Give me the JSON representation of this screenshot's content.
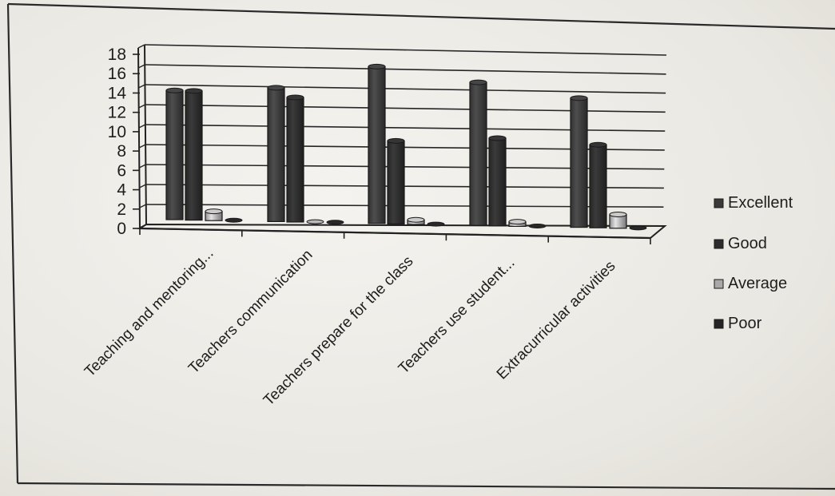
{
  "chart_data": {
    "type": "bar",
    "categories": [
      "Teaching and mentoring...",
      "Teachers communication",
      "Teachers prepare for the class",
      "Teachers use student...",
      "Extracurricular activities"
    ],
    "series": [
      {
        "name": "Excellent",
        "values": [
          14,
          14.5,
          17,
          15.5,
          14
        ]
      },
      {
        "name": "Good",
        "values": [
          14,
          13.5,
          9,
          9.5,
          9
        ]
      },
      {
        "name": "Average",
        "values": [
          1,
          0,
          0.5,
          0.5,
          1.5
        ]
      },
      {
        "name": "Poor",
        "values": [
          0,
          0,
          0,
          0,
          0
        ]
      }
    ],
    "yticks": [
      "0",
      "2",
      "4",
      "6",
      "8",
      "10",
      "12",
      "14",
      "16",
      "18"
    ],
    "ylim": [
      0,
      18
    ],
    "grid": true,
    "legend_position": "right",
    "colors": {
      "Excellent": "#3a3a3a",
      "Good": "#2c2c2c",
      "Average": "#a9a9a9",
      "Poor": "#242424"
    }
  }
}
